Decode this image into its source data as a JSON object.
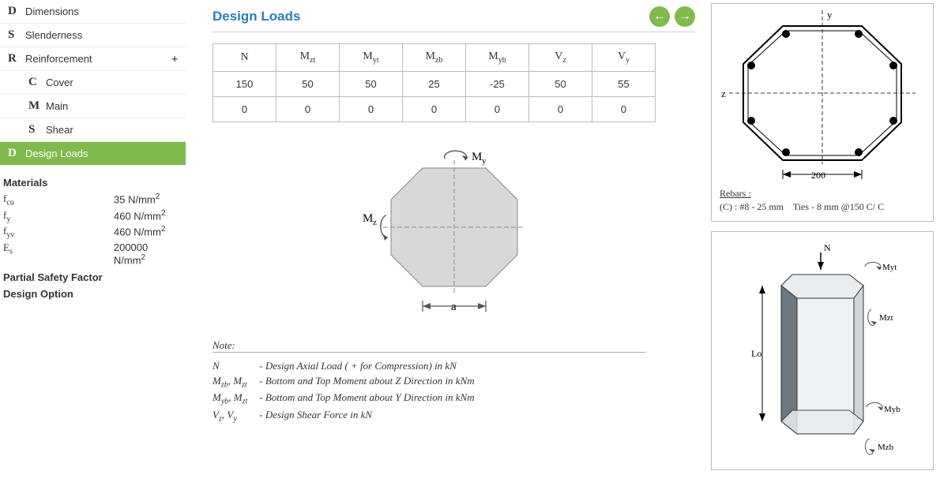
{
  "sidebar": {
    "items": [
      {
        "key": "D",
        "label": "Dimensions",
        "sub": false,
        "active": false,
        "plus": false
      },
      {
        "key": "S",
        "label": "Slenderness",
        "sub": false,
        "active": false,
        "plus": false
      },
      {
        "key": "R",
        "label": "Reinforcement",
        "sub": false,
        "active": false,
        "plus": true
      },
      {
        "key": "C",
        "label": "Cover",
        "sub": true,
        "active": false,
        "plus": false
      },
      {
        "key": "M",
        "label": "Main",
        "sub": true,
        "active": false,
        "plus": false
      },
      {
        "key": "S",
        "label": "Shear",
        "sub": true,
        "active": false,
        "plus": false
      },
      {
        "key": "D",
        "label": "Design Loads",
        "sub": false,
        "active": true,
        "plus": false
      }
    ],
    "materials_heading": "Materials",
    "materials": [
      {
        "sym_html": "f<sub>cu</sub>",
        "val_html": "35 N/mm<sup>2</sup>"
      },
      {
        "sym_html": "f<sub>y</sub>",
        "val_html": "460 N/mm<sup>2</sup>"
      },
      {
        "sym_html": "f<sub>yv</sub>",
        "val_html": "460 N/mm<sup>2</sup>"
      },
      {
        "sym_html": "E<sub>s</sub>",
        "val_html": "200000 N/mm<sup>2</sup>"
      }
    ],
    "psf_heading": "Partial Safety Factor",
    "design_option_heading": "Design Option"
  },
  "main": {
    "title": "Design Loads",
    "table": {
      "headers_html": [
        "N",
        "M<sub>zt</sub>",
        "M<sub>yt</sub>",
        "M<sub>zb</sub>",
        "M<sub>yb</sub>",
        "V<sub>z</sub>",
        "V<sub>y</sub>"
      ],
      "rows": [
        [
          "150",
          "50",
          "50",
          "25",
          "-25",
          "50",
          "55"
        ],
        [
          "0",
          "0",
          "0",
          "0",
          "0",
          "0",
          "0"
        ]
      ]
    },
    "diagram": {
      "my_label_html": "M<sub>y</sub>",
      "mz_label_html": "M<sub>z</sub>",
      "dim_label": "a",
      "fill": "#d8d8d8",
      "stroke": "#888"
    },
    "notes": {
      "title": "Note:",
      "lines": [
        {
          "k_html": "N",
          "t": "- Design Axial Load ( + for Compression) in kN"
        },
        {
          "k_html": "M<sub>zb</sub>, M<sub>zt</sub>",
          "t": "- Bottom and Top Moment about Z Direction in kNm"
        },
        {
          "k_html": "M<sub>yb</sub>, M<sub>zt</sub>",
          "t": "- Bottom and Top Moment about Y Direction in kNm"
        },
        {
          "k_html": "V<sub>z</sub>, V<sub>y</sub>",
          "t": "- Design Shear Force in kN"
        }
      ]
    }
  },
  "right": {
    "section": {
      "y_label": "y",
      "z_label": "z",
      "dim_label": "200",
      "rebars_heading": "Rebars :",
      "rebars_line_html": "(C) : #8 - 25 mm &nbsp;&nbsp; Ties - 8 mm @150 C/ C",
      "stroke": "#000",
      "rebar_fill": "#000"
    },
    "column3d": {
      "labels": {
        "N": "N",
        "Myt": "Myt",
        "Mzt": "Mzt",
        "Lo": "Lo",
        "Myb": "Myb",
        "Mzb": "Mzb"
      },
      "face_light": "#e8ecef",
      "face_dark": "#6d7880",
      "stroke": "#333"
    }
  }
}
